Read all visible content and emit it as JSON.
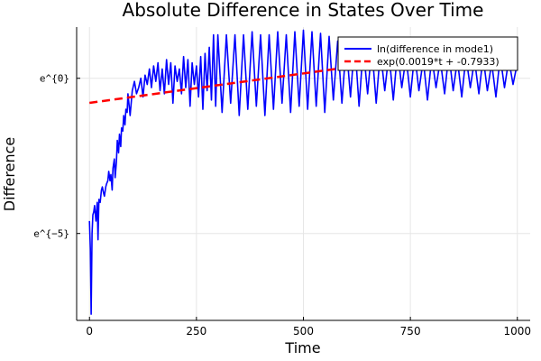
{
  "chart_data": {
    "type": "line",
    "title": "Absolute Difference in States Over Time",
    "xlabel": "Time",
    "ylabel": "Difference",
    "xlim": [
      -30,
      1030
    ],
    "ylim": [
      -7.8,
      1.65
    ],
    "x_ticks": [
      0,
      250,
      500,
      750,
      1000
    ],
    "x_tick_labels": [
      "0",
      "250",
      "500",
      "750",
      "1000"
    ],
    "y_ticks": [
      0,
      -5
    ],
    "y_tick_labels": [
      "e^{0}",
      "e^{−5}"
    ],
    "y_scale": "log (base e), values shown as natural log",
    "grid": true,
    "legend_position": "top-right",
    "series": [
      {
        "name": "ln(difference in mode1)",
        "color": "#0000ff",
        "style": "solid",
        "x": [
          0,
          2,
          4,
          6,
          8,
          10,
          12,
          15,
          18,
          20,
          22,
          25,
          28,
          30,
          33,
          35,
          38,
          40,
          43,
          45,
          48,
          50,
          53,
          55,
          58,
          60,
          63,
          65,
          68,
          70,
          73,
          75,
          78,
          80,
          83,
          85,
          88,
          90,
          95,
          100,
          105,
          110,
          115,
          120,
          125,
          130,
          135,
          140,
          145,
          150,
          155,
          160,
          165,
          170,
          175,
          180,
          185,
          190,
          195,
          200,
          205,
          210,
          215,
          220,
          225,
          230,
          235,
          240,
          245,
          250,
          255,
          260,
          265,
          270,
          275,
          280,
          285,
          290,
          295,
          300,
          310,
          320,
          330,
          340,
          350,
          360,
          370,
          380,
          390,
          400,
          410,
          420,
          430,
          440,
          450,
          460,
          470,
          480,
          490,
          500,
          510,
          520,
          530,
          540,
          550,
          560,
          570,
          580,
          590,
          600,
          610,
          620,
          630,
          640,
          650,
          660,
          670,
          680,
          690,
          700,
          710,
          720,
          730,
          740,
          750,
          760,
          770,
          780,
          790,
          800,
          810,
          820,
          830,
          840,
          850,
          860,
          870,
          880,
          890,
          900,
          910,
          920,
          930,
          940,
          950,
          960,
          970,
          980,
          990,
          1000
        ],
        "y": [
          -4.6,
          -5.5,
          -7.6,
          -5.0,
          -4.4,
          -4.3,
          -4.1,
          -4.6,
          -4.0,
          -5.2,
          -3.9,
          -4.0,
          -3.6,
          -3.5,
          -3.7,
          -3.8,
          -3.5,
          -3.4,
          -3.3,
          -3.0,
          -3.3,
          -3.1,
          -3.6,
          -2.9,
          -2.6,
          -3.2,
          -2.7,
          -2.0,
          -2.4,
          -1.8,
          -2.2,
          -1.6,
          -1.7,
          -1.2,
          -1.5,
          -1.0,
          -1.1,
          -0.5,
          -1.2,
          -0.4,
          -0.1,
          -0.5,
          -0.3,
          0.0,
          -0.6,
          0.1,
          -0.2,
          0.3,
          -0.3,
          0.4,
          -0.1,
          0.5,
          -0.4,
          0.3,
          -0.5,
          0.6,
          -0.2,
          0.5,
          -0.8,
          0.4,
          -0.1,
          0.3,
          -0.5,
          0.7,
          -0.3,
          0.6,
          -0.9,
          0.5,
          -0.2,
          0.4,
          -0.6,
          0.7,
          -1.0,
          0.8,
          -0.4,
          1.0,
          -0.7,
          1.4,
          -0.9,
          1.4,
          -1.1,
          1.4,
          -0.8,
          1.4,
          -1.2,
          1.4,
          -1.0,
          1.5,
          -0.9,
          1.4,
          -1.2,
          1.4,
          -1.0,
          1.5,
          -0.8,
          1.4,
          -1.1,
          1.5,
          -0.9,
          1.55,
          -1.0,
          1.5,
          -0.9,
          1.45,
          -1.1,
          1.35,
          -0.7,
          1.2,
          -0.8,
          1.1,
          -0.6,
          1.2,
          -0.9,
          1.0,
          -0.5,
          1.0,
          -0.8,
          0.9,
          -0.4,
          0.8,
          -0.7,
          0.9,
          -0.3,
          0.7,
          -0.6,
          0.8,
          -0.4,
          0.6,
          -0.7,
          0.7,
          -0.3,
          0.6,
          -0.5,
          0.8,
          -0.4,
          0.6,
          -0.6,
          0.7,
          -0.3,
          0.6,
          -0.5,
          0.7,
          -0.4,
          0.5,
          -0.6,
          0.7,
          -0.3,
          0.6,
          -0.2,
          0.5
        ]
      },
      {
        "name": "exp(0.0019*t + -0.7933)",
        "color": "#ff0000",
        "style": "dashed",
        "x": [
          0,
          1000
        ],
        "y": [
          -0.7933,
          1.1067
        ]
      }
    ]
  }
}
